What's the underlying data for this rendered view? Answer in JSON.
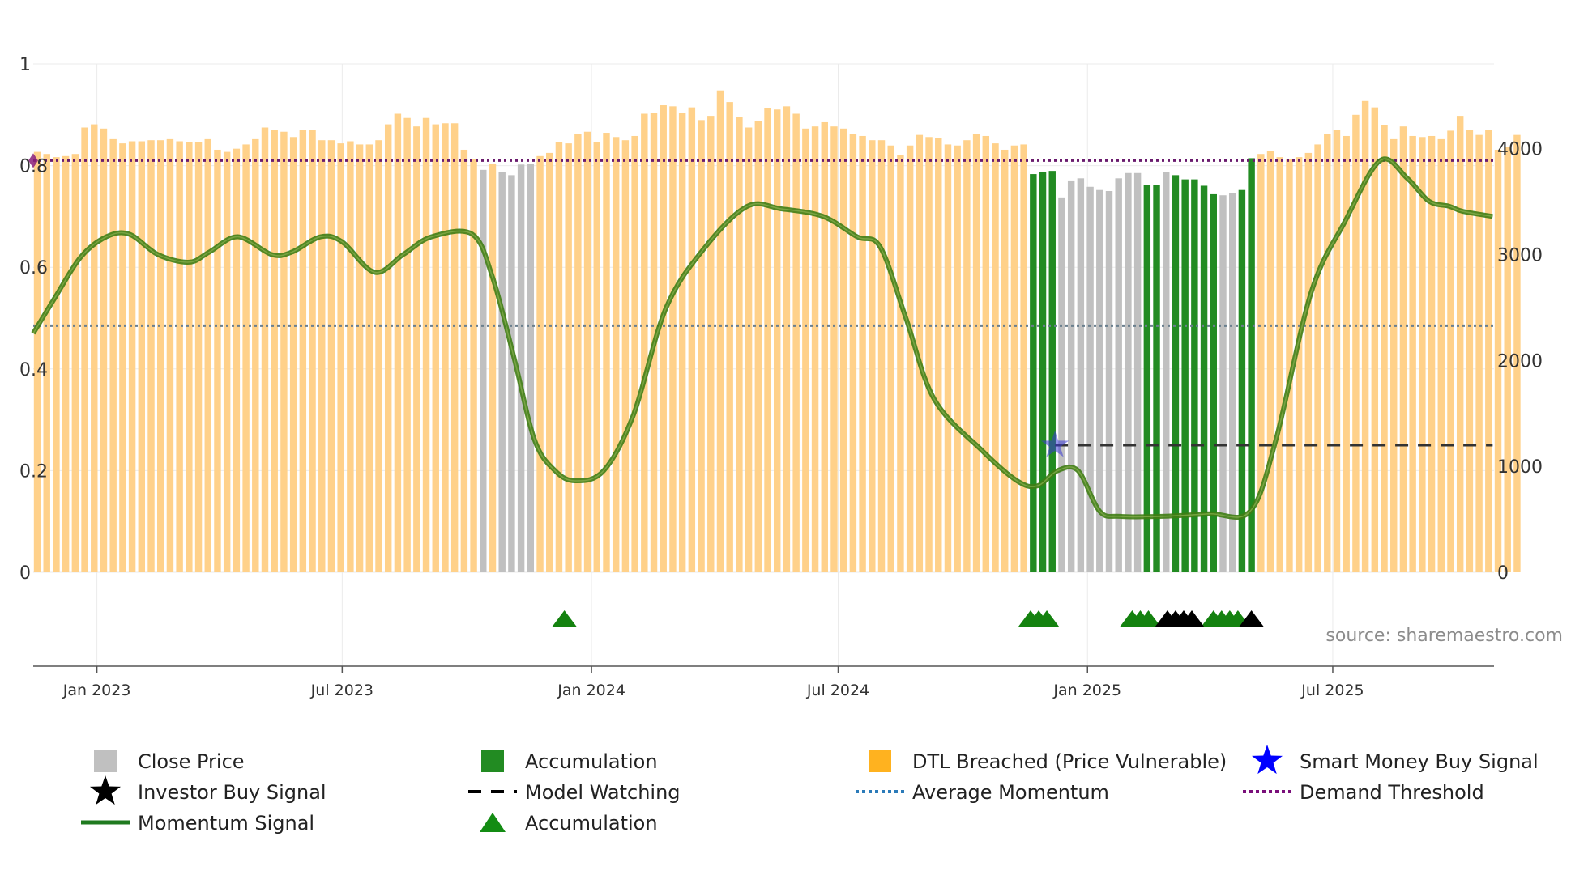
{
  "chart_data": {
    "type": "bar",
    "source": "source: sharemaestro.com",
    "colors": {
      "close_price": "#c0c0c0",
      "accumulation": "#228b22",
      "dtl_breached": "#ffd18a",
      "momentum": "#4e8a1c",
      "average_momentum": "#6a7f8e",
      "demand_threshold": "#6a1b6e",
      "smart_money": "#1515e0",
      "investor": "#000000",
      "acc_marker": "#14820f"
    },
    "left_axis": {
      "ylim": [
        0,
        1
      ],
      "ticks": [
        {
          "v": 0,
          "label": "0"
        },
        {
          "v": 0.2,
          "label": "0.2"
        },
        {
          "v": 0.4,
          "label": "0.4"
        },
        {
          "v": 0.6,
          "label": "0.6"
        },
        {
          "v": 0.8,
          "label": "0.8"
        },
        {
          "v": 1,
          "label": "1"
        }
      ]
    },
    "right_axis": {
      "ylim": [
        0,
        4800
      ],
      "ticks": [
        {
          "v": 0,
          "label": "0"
        },
        {
          "v": 1000,
          "label": "1000"
        },
        {
          "v": 2000,
          "label": "2000"
        },
        {
          "v": 3000,
          "label": "3000"
        },
        {
          "v": 4000,
          "label": "4000"
        }
      ]
    },
    "x_axis": {
      "start": "2022-11-15",
      "end": "2025-10-28",
      "ticks": [
        {
          "date": "2023-01-01",
          "label": "Jan 2023"
        },
        {
          "date": "2023-07-01",
          "label": "Jul 2023"
        },
        {
          "date": "2024-01-01",
          "label": "Jan 2024"
        },
        {
          "date": "2024-07-01",
          "label": "Jul 2024"
        },
        {
          "date": "2025-01-01",
          "label": "Jan 2025"
        },
        {
          "date": "2025-07-01",
          "label": "Jul 2025"
        }
      ]
    },
    "bar_week_start": "2022-11-15",
    "close_price": [
      3970,
      3950,
      3920,
      3930,
      3950,
      4200,
      4230,
      4190,
      4090,
      4050,
      4070,
      4070,
      4080,
      4080,
      4090,
      4070,
      4060,
      4060,
      4090,
      3990,
      3970,
      4000,
      4040,
      4090,
      4200,
      4180,
      4160,
      4110,
      4180,
      4180,
      4080,
      4080,
      4050,
      4070,
      4040,
      4040,
      4080,
      4230,
      4330,
      4290,
      4210,
      4290,
      4230,
      4240,
      4240,
      3990,
      3900,
      3800,
      3860,
      3780,
      3750,
      3850,
      3860,
      3930,
      3960,
      4060,
      4050,
      4140,
      4160,
      4060,
      4150,
      4110,
      4080,
      4120,
      4330,
      4340,
      4410,
      4400,
      4340,
      4390,
      4270,
      4310,
      4550,
      4440,
      4300,
      4200,
      4260,
      4380,
      4370,
      4400,
      4330,
      4190,
      4210,
      4250,
      4210,
      4190,
      4140,
      4120,
      4080,
      4080,
      4030,
      3940,
      4030,
      4130,
      4110,
      4100,
      4040,
      4030,
      4080,
      4140,
      4120,
      4050,
      3990,
      4030,
      4040,
      3760,
      3780,
      3790,
      3540,
      3700,
      3720,
      3640,
      3610,
      3600,
      3720,
      3770,
      3770,
      3660,
      3660,
      3780,
      3750,
      3710,
      3710,
      3650,
      3570,
      3560,
      3580,
      3610,
      3910,
      3950,
      3980,
      3920,
      3900,
      3920,
      3960,
      4040,
      4140,
      4180,
      4120,
      4320,
      4450,
      4390,
      4220,
      4090,
      4210,
      4120,
      4110,
      4120,
      4090,
      4170,
      4310,
      4180,
      4130,
      4180,
      3990,
      4020,
      4130
    ],
    "signal": [
      "d",
      "d",
      "d",
      "d",
      "d",
      "d",
      "d",
      "d",
      "d",
      "d",
      "d",
      "d",
      "d",
      "d",
      "d",
      "d",
      "d",
      "d",
      "d",
      "d",
      "d",
      "d",
      "d",
      "d",
      "d",
      "d",
      "d",
      "d",
      "d",
      "d",
      "d",
      "d",
      "d",
      "d",
      "d",
      "d",
      "d",
      "d",
      "d",
      "d",
      "d",
      "d",
      "d",
      "d",
      "d",
      "d",
      "d",
      "c",
      "d",
      "c",
      "c",
      "c",
      "c",
      "d",
      "d",
      "d",
      "d",
      "d",
      "d",
      "d",
      "d",
      "d",
      "d",
      "d",
      "d",
      "d",
      "d",
      "d",
      "d",
      "d",
      "d",
      "d",
      "d",
      "d",
      "d",
      "d",
      "d",
      "d",
      "d",
      "d",
      "d",
      "d",
      "d",
      "d",
      "d",
      "d",
      "d",
      "d",
      "d",
      "d",
      "d",
      "d",
      "d",
      "d",
      "d",
      "d",
      "d",
      "d",
      "d",
      "d",
      "d",
      "d",
      "d",
      "d",
      "d",
      "a",
      "a",
      "a",
      "c",
      "c",
      "c",
      "c",
      "c",
      "c",
      "c",
      "c",
      "c",
      "a",
      "a",
      "c",
      "a",
      "a",
      "a",
      "a",
      "a",
      "c",
      "c",
      "a",
      "a",
      "d",
      "d",
      "d",
      "d",
      "d",
      "d",
      "d",
      "d",
      "d",
      "d",
      "d",
      "d",
      "d",
      "d",
      "d",
      "d",
      "d",
      "d",
      "d",
      "d",
      "d",
      "d",
      "d",
      "d",
      "d",
      "d",
      "d",
      "d"
    ],
    "momentum": [
      {
        "date": "2022-11-15",
        "v": 0.47
      },
      {
        "date": "2022-12-01",
        "v": 0.54
      },
      {
        "date": "2022-12-20",
        "v": 0.62
      },
      {
        "date": "2023-01-08",
        "v": 0.66
      },
      {
        "date": "2023-01-25",
        "v": 0.665
      },
      {
        "date": "2023-02-15",
        "v": 0.625
      },
      {
        "date": "2023-03-10",
        "v": 0.61
      },
      {
        "date": "2023-03-25",
        "v": 0.63
      },
      {
        "date": "2023-04-15",
        "v": 0.66
      },
      {
        "date": "2023-05-10",
        "v": 0.625
      },
      {
        "date": "2023-05-25",
        "v": 0.63
      },
      {
        "date": "2023-06-15",
        "v": 0.66
      },
      {
        "date": "2023-07-01",
        "v": 0.65
      },
      {
        "date": "2023-07-25",
        "v": 0.59
      },
      {
        "date": "2023-08-15",
        "v": 0.625
      },
      {
        "date": "2023-09-05",
        "v": 0.66
      },
      {
        "date": "2023-10-05",
        "v": 0.665
      },
      {
        "date": "2023-10-20",
        "v": 0.58
      },
      {
        "date": "2023-11-05",
        "v": 0.42
      },
      {
        "date": "2023-11-20",
        "v": 0.26
      },
      {
        "date": "2023-12-05",
        "v": 0.2
      },
      {
        "date": "2023-12-20",
        "v": 0.18
      },
      {
        "date": "2024-01-10",
        "v": 0.2
      },
      {
        "date": "2024-02-01",
        "v": 0.31
      },
      {
        "date": "2024-02-25",
        "v": 0.52
      },
      {
        "date": "2024-03-25",
        "v": 0.64
      },
      {
        "date": "2024-04-25",
        "v": 0.72
      },
      {
        "date": "2024-05-20",
        "v": 0.715
      },
      {
        "date": "2024-06-20",
        "v": 0.7
      },
      {
        "date": "2024-07-15",
        "v": 0.66
      },
      {
        "date": "2024-08-01",
        "v": 0.64
      },
      {
        "date": "2024-08-20",
        "v": 0.5
      },
      {
        "date": "2024-09-10",
        "v": 0.34
      },
      {
        "date": "2024-10-15",
        "v": 0.24
      },
      {
        "date": "2024-11-10",
        "v": 0.18
      },
      {
        "date": "2024-11-25",
        "v": 0.17
      },
      {
        "date": "2024-12-10",
        "v": 0.2
      },
      {
        "date": "2024-12-25",
        "v": 0.2
      },
      {
        "date": "2025-01-10",
        "v": 0.12
      },
      {
        "date": "2025-01-25",
        "v": 0.11
      },
      {
        "date": "2025-02-25",
        "v": 0.11
      },
      {
        "date": "2025-04-01",
        "v": 0.115
      },
      {
        "date": "2025-05-01",
        "v": 0.12
      },
      {
        "date": "2025-05-20",
        "v": 0.26
      },
      {
        "date": "2025-06-15",
        "v": 0.55
      },
      {
        "date": "2025-07-10",
        "v": 0.69
      },
      {
        "date": "2025-08-05",
        "v": 0.81
      },
      {
        "date": "2025-08-25",
        "v": 0.775
      },
      {
        "date": "2025-09-10",
        "v": 0.73
      },
      {
        "date": "2025-09-25",
        "v": 0.72
      },
      {
        "date": "2025-10-05",
        "v": 0.71
      },
      {
        "date": "2025-10-27",
        "v": 0.7
      }
    ],
    "average_momentum": 0.485,
    "demand_threshold": 0.81,
    "model_watching": {
      "start": "2024-12-08",
      "end": "2025-10-27",
      "v": 0.25
    },
    "smart_money_buy_signals": [
      {
        "date": "2024-12-08",
        "v": 0.25
      }
    ],
    "accumulation_markers": [
      "2023-12-12",
      "2024-11-20",
      "2024-11-26",
      "2024-12-02",
      "2025-02-03",
      "2025-02-09",
      "2025-02-15",
      "2025-04-04",
      "2025-04-10",
      "2025-04-16",
      "2025-04-22"
    ],
    "investor_buy_markers": [
      "2025-03-01",
      "2025-03-07",
      "2025-03-13",
      "2025-03-19",
      "2025-05-02"
    ],
    "legend": [
      {
        "label": "Close Price",
        "kind": "square",
        "color": "#c0c0c0"
      },
      {
        "label": "Accumulation",
        "kind": "square",
        "color": "#228b22"
      },
      {
        "label": "DTL Breached (Price Vulnerable)",
        "kind": "square",
        "color": "#ffb21f"
      },
      {
        "label": "Smart Money Buy Signal",
        "kind": "star",
        "color": "#0000ff"
      },
      {
        "label": "Investor Buy Signal",
        "kind": "star",
        "color": "#000000"
      },
      {
        "label": "Model Watching",
        "kind": "dash",
        "color": "#000000"
      },
      {
        "label": "Average Momentum",
        "kind": "dot",
        "color": "#2b7bb9"
      },
      {
        "label": "Demand Threshold",
        "kind": "dot",
        "color": "#7a0f7a"
      },
      {
        "label": "Momentum Signal",
        "kind": "line",
        "color": "#1f7a1f"
      },
      {
        "label": "Accumulation",
        "kind": "triangle",
        "color": "#138c13"
      }
    ]
  }
}
